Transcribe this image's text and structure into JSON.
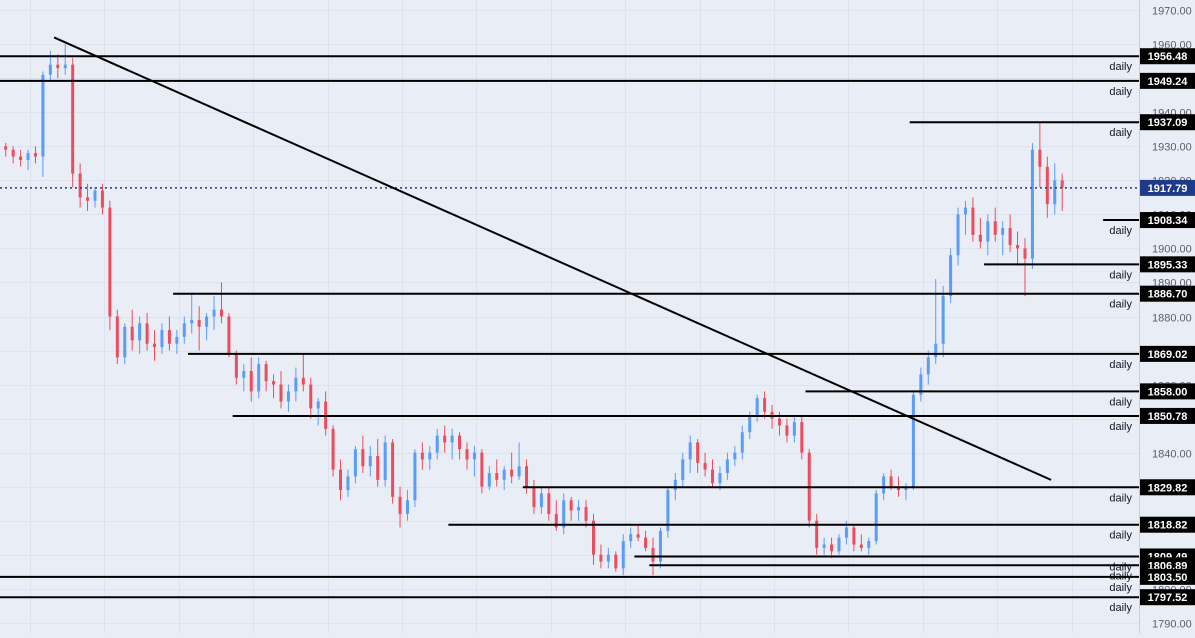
{
  "chart_data": {
    "type": "candlestick",
    "timeframe_label": "daily",
    "ylim": [
      1787,
      1973
    ],
    "y_ticks": [
      1790.0,
      1800.0,
      1810.0,
      1820.0,
      1830.0,
      1840.0,
      1850.0,
      1860.0,
      1870.0,
      1880.0,
      1890.0,
      1900.0,
      1910.0,
      1920.0,
      1930.0,
      1940.0,
      1950.0,
      1960.0,
      1970.0
    ],
    "grid": true,
    "current_price": "1917.79",
    "horizontal_levels": [
      {
        "price": "1956.48",
        "label": "daily",
        "start_bar": 0
      },
      {
        "price": "1949.24",
        "label": "daily",
        "start_bar": 0
      },
      {
        "price": "1937.09",
        "label": "daily",
        "start_bar": 122
      },
      {
        "price": "1908.34",
        "label": "daily",
        "start_bar": 148
      },
      {
        "price": "1895.33",
        "label": "daily",
        "start_bar": 132
      },
      {
        "price": "1886.70",
        "label": "daily",
        "start_bar": 23
      },
      {
        "price": "1869.02",
        "label": "daily",
        "start_bar": 25
      },
      {
        "price": "1858.00",
        "label": "daily",
        "start_bar": 108
      },
      {
        "price": "1850.78",
        "label": "daily",
        "start_bar": 31
      },
      {
        "price": "1829.82",
        "label": "daily",
        "start_bar": 70
      },
      {
        "price": "1818.82",
        "label": "daily",
        "start_bar": 60
      },
      {
        "price": "1809.49",
        "label": "daily",
        "start_bar": 85
      },
      {
        "price": "1806.89",
        "label": "daily",
        "start_bar": 87
      },
      {
        "price": "1803.50",
        "label": "daily",
        "start_bar": 0
      },
      {
        "price": "1797.52",
        "label": "daily",
        "start_bar": 0
      }
    ],
    "trendline": {
      "from_bar": 7,
      "from_price": 1962,
      "to_bar": 141,
      "to_price": 1832
    },
    "colors": {
      "up": "#5b9cf6",
      "down": "#eb4d5c",
      "level": "#000000",
      "trend": "#000000",
      "current": "#1e3a8a",
      "axis_text": "#5d606b",
      "grid": "#dde3ee",
      "background": "#e9edf6"
    },
    "candles": [
      [
        1930,
        1931,
        1927,
        1929
      ],
      [
        1929,
        1930,
        1925,
        1927
      ],
      [
        1927,
        1929,
        1924,
        1926
      ],
      [
        1926,
        1929,
        1923,
        1928
      ],
      [
        1928,
        1930,
        1925,
        1927
      ],
      [
        1927,
        1952,
        1921,
        1951
      ],
      [
        1951,
        1958,
        1949,
        1954
      ],
      [
        1954,
        1957,
        1950,
        1953
      ],
      [
        1953,
        1960,
        1951,
        1954
      ],
      [
        1954,
        1956,
        1918,
        1922
      ],
      [
        1922,
        1925,
        1912,
        1915
      ],
      [
        1915,
        1919,
        1911,
        1914
      ],
      [
        1914,
        1918,
        1912,
        1917
      ],
      [
        1917,
        1919,
        1910,
        1912
      ],
      [
        1912,
        1914,
        1876,
        1880
      ],
      [
        1880,
        1882,
        1866,
        1868
      ],
      [
        1868,
        1878,
        1866,
        1877
      ],
      [
        1877,
        1882,
        1870,
        1873
      ],
      [
        1873,
        1880,
        1869,
        1878
      ],
      [
        1878,
        1881,
        1870,
        1872
      ],
      [
        1872,
        1876,
        1867,
        1871
      ],
      [
        1871,
        1878,
        1869,
        1876
      ],
      [
        1876,
        1880,
        1870,
        1872
      ],
      [
        1872,
        1876,
        1869,
        1874
      ],
      [
        1874,
        1880,
        1872,
        1878
      ],
      [
        1878,
        1887,
        1875,
        1879
      ],
      [
        1879,
        1883,
        1870,
        1877
      ],
      [
        1877,
        1881,
        1873,
        1880
      ],
      [
        1880,
        1886,
        1876,
        1882
      ],
      [
        1882,
        1890,
        1878,
        1880
      ],
      [
        1880,
        1881,
        1868,
        1869
      ],
      [
        1869,
        1870,
        1860,
        1862
      ],
      [
        1862,
        1866,
        1858,
        1864
      ],
      [
        1864,
        1868,
        1855,
        1858
      ],
      [
        1858,
        1868,
        1856,
        1866
      ],
      [
        1866,
        1867,
        1858,
        1861
      ],
      [
        1861,
        1863,
        1856,
        1860
      ],
      [
        1860,
        1864,
        1853,
        1855
      ],
      [
        1855,
        1860,
        1852,
        1858
      ],
      [
        1858,
        1865,
        1855,
        1862
      ],
      [
        1862,
        1869,
        1858,
        1860
      ],
      [
        1860,
        1862,
        1850,
        1853
      ],
      [
        1853,
        1856,
        1848,
        1855
      ],
      [
        1855,
        1858,
        1845,
        1847
      ],
      [
        1847,
        1848,
        1833,
        1835
      ],
      [
        1835,
        1838,
        1826,
        1829
      ],
      [
        1829,
        1835,
        1827,
        1833
      ],
      [
        1833,
        1842,
        1831,
        1841
      ],
      [
        1841,
        1845,
        1834,
        1836
      ],
      [
        1836,
        1842,
        1833,
        1839
      ],
      [
        1839,
        1844,
        1830,
        1832
      ],
      [
        1832,
        1845,
        1830,
        1843
      ],
      [
        1843,
        1844,
        1825,
        1827
      ],
      [
        1827,
        1830,
        1818,
        1822
      ],
      [
        1822,
        1829,
        1820,
        1826
      ],
      [
        1826,
        1841,
        1824,
        1840
      ],
      [
        1840,
        1843,
        1835,
        1838
      ],
      [
        1838,
        1842,
        1835,
        1840
      ],
      [
        1840,
        1847,
        1838,
        1845
      ],
      [
        1845,
        1848,
        1840,
        1843
      ],
      [
        1843,
        1847,
        1838,
        1845
      ],
      [
        1845,
        1846,
        1838,
        1841
      ],
      [
        1841,
        1843,
        1835,
        1838
      ],
      [
        1838,
        1842,
        1833,
        1840
      ],
      [
        1840,
        1841,
        1828,
        1830
      ],
      [
        1830,
        1836,
        1829,
        1834
      ],
      [
        1834,
        1838,
        1830,
        1832
      ],
      [
        1832,
        1836,
        1829,
        1835
      ],
      [
        1835,
        1840,
        1831,
        1833
      ],
      [
        1833,
        1843,
        1832,
        1836
      ],
      [
        1836,
        1838,
        1828,
        1830
      ],
      [
        1830,
        1832,
        1822,
        1824
      ],
      [
        1824,
        1830,
        1822,
        1828
      ],
      [
        1828,
        1830,
        1820,
        1822
      ],
      [
        1822,
        1826,
        1817,
        1818
      ],
      [
        1818,
        1828,
        1816,
        1826
      ],
      [
        1826,
        1827,
        1820,
        1823
      ],
      [
        1823,
        1826,
        1820,
        1824
      ],
      [
        1824,
        1826,
        1818,
        1820
      ],
      [
        1820,
        1822,
        1807,
        1810
      ],
      [
        1810,
        1813,
        1806,
        1808
      ],
      [
        1808,
        1812,
        1806,
        1810
      ],
      [
        1810,
        1811,
        1805,
        1806
      ],
      [
        1806,
        1816,
        1804,
        1814
      ],
      [
        1814,
        1818,
        1812,
        1816
      ],
      [
        1816,
        1819,
        1814,
        1815
      ],
      [
        1815,
        1817,
        1811,
        1812
      ],
      [
        1812,
        1815,
        1804,
        1808
      ],
      [
        1808,
        1818,
        1806,
        1817
      ],
      [
        1817,
        1830,
        1815,
        1829
      ],
      [
        1829,
        1834,
        1826,
        1832
      ],
      [
        1832,
        1840,
        1830,
        1838
      ],
      [
        1838,
        1845,
        1834,
        1843
      ],
      [
        1843,
        1844,
        1834,
        1837
      ],
      [
        1837,
        1840,
        1833,
        1835
      ],
      [
        1835,
        1838,
        1830,
        1831
      ],
      [
        1831,
        1836,
        1829,
        1834
      ],
      [
        1834,
        1840,
        1832,
        1838
      ],
      [
        1838,
        1842,
        1836,
        1840
      ],
      [
        1840,
        1848,
        1838,
        1846
      ],
      [
        1846,
        1852,
        1844,
        1851
      ],
      [
        1851,
        1857,
        1849,
        1856
      ],
      [
        1856,
        1858,
        1850,
        1852
      ],
      [
        1852,
        1854,
        1847,
        1850
      ],
      [
        1850,
        1852,
        1845,
        1848
      ],
      [
        1848,
        1850,
        1843,
        1845
      ],
      [
        1845,
        1851,
        1843,
        1849
      ],
      [
        1849,
        1851,
        1838,
        1840
      ],
      [
        1840,
        1841,
        1818,
        1820
      ],
      [
        1820,
        1822,
        1810,
        1812
      ],
      [
        1812,
        1815,
        1810,
        1813
      ],
      [
        1813,
        1815,
        1809,
        1811
      ],
      [
        1811,
        1816,
        1810,
        1815
      ],
      [
        1815,
        1820,
        1813,
        1818
      ],
      [
        1818,
        1819,
        1811,
        1813
      ],
      [
        1813,
        1816,
        1811,
        1812
      ],
      [
        1812,
        1815,
        1810,
        1814
      ],
      [
        1814,
        1829,
        1813,
        1828
      ],
      [
        1828,
        1834,
        1826,
        1833
      ],
      [
        1833,
        1835,
        1829,
        1830
      ],
      [
        1830,
        1833,
        1827,
        1829
      ],
      [
        1829,
        1831,
        1826,
        1830
      ],
      [
        1830,
        1858,
        1829,
        1857
      ],
      [
        1857,
        1865,
        1855,
        1863
      ],
      [
        1863,
        1870,
        1860,
        1868
      ],
      [
        1868,
        1891,
        1866,
        1872
      ],
      [
        1872,
        1889,
        1868,
        1886
      ],
      [
        1886,
        1900,
        1884,
        1898
      ],
      [
        1898,
        1912,
        1895,
        1910
      ],
      [
        1910,
        1914,
        1904,
        1912
      ],
      [
        1912,
        1915,
        1902,
        1904
      ],
      [
        1904,
        1909,
        1900,
        1902
      ],
      [
        1902,
        1910,
        1898,
        1908
      ],
      [
        1908,
        1912,
        1902,
        1904
      ],
      [
        1904,
        1908,
        1898,
        1906
      ],
      [
        1906,
        1910,
        1899,
        1901
      ],
      [
        1901,
        1905,
        1895,
        1900
      ],
      [
        1900,
        1903,
        1886,
        1897
      ],
      [
        1897,
        1931,
        1894,
        1929
      ],
      [
        1929,
        1937,
        1918,
        1924
      ],
      [
        1924,
        1927,
        1909,
        1913
      ],
      [
        1913,
        1925,
        1910,
        1920
      ],
      [
        1920,
        1922,
        1911,
        1918
      ]
    ]
  }
}
